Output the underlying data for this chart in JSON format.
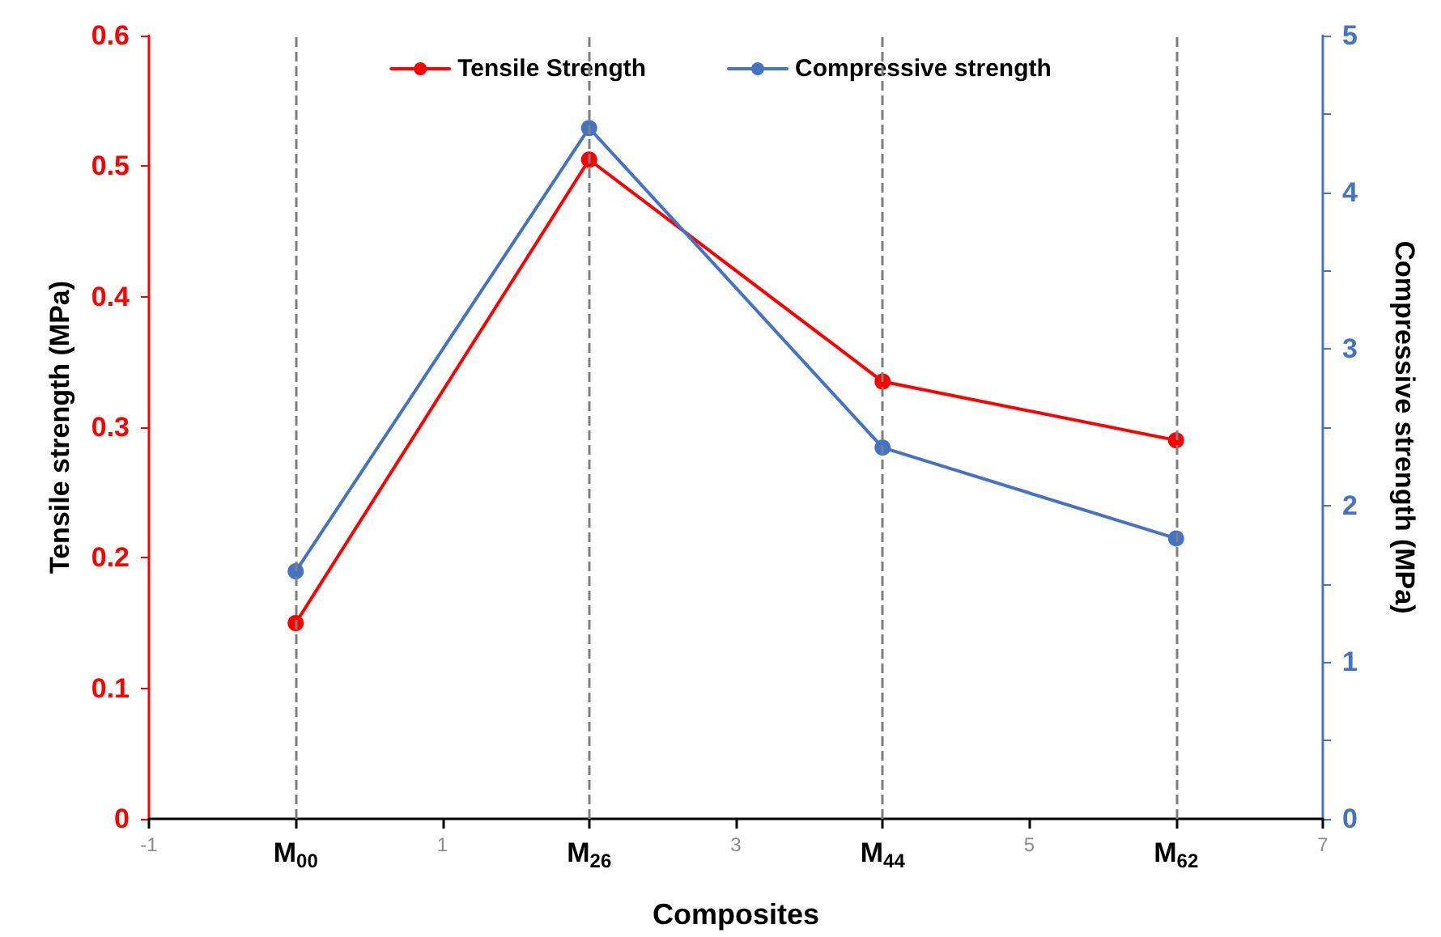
{
  "chart_data": {
    "type": "line",
    "xlabel": "Composites",
    "ylabel": "Tensile strength (MPa)",
    "y2label": "Compressive strength (MPa)",
    "categories": [
      "-1",
      "M$_{00}$",
      "1",
      "M$_{26}$",
      "3",
      "M$_{44}$",
      "5",
      "M$_{62}$",
      "7"
    ],
    "ylim": [
      0,
      0.6
    ],
    "yticks": [
      0,
      0.1,
      0.2,
      0.3,
      0.4,
      0.5,
      0.6
    ],
    "y2lim": [
      0,
      5
    ],
    "y2ticks": [
      0,
      {
        "value": 0.5,
        "label": null
      },
      1,
      {
        "value": 1.5,
        "label": null
      },
      2,
      {
        "value": 2.5,
        "label": null
      },
      3,
      {
        "value": 3.5,
        "label": null
      },
      4,
      {
        "value": 4.5,
        "label": null
      },
      5
    ],
    "series": [
      {
        "name": "Tensile Strength",
        "color": "#ff0000",
        "x": [
          "M$_{00}$",
          "M$_{26}$",
          "M$_{44}$",
          "M$_{62}$"
        ],
        "values": [
          0.15,
          0.505,
          0.335,
          0.29
        ]
      },
      {
        "name": "Compressive strength",
        "color": "#4472c4",
        "axis": "y2",
        "x": [
          "M$_{00}$",
          "M$_{26}$",
          "M$_{44}$",
          "M$_{62}$"
        ],
        "values": [
          1.58,
          4.41,
          2.37,
          1.79
        ]
      }
    ],
    "ref_lines": [
      {
        "axis": "x",
        "value": "M$_{00}$",
        "color": "#7f7f7f",
        "line_style": "dashed"
      },
      {
        "axis": "x",
        "value": "M$_{26}$",
        "color": "#7f7f7f",
        "line_style": "dashed"
      },
      {
        "axis": "x",
        "value": "M$_{44}$",
        "color": "#7f7f7f",
        "line_style": "dashed"
      },
      {
        "axis": "x",
        "value": "M$_{62}$",
        "color": "#7f7f7f",
        "line_style": "dashed"
      }
    ],
    "grid": false,
    "legend": "top",
    "marker": "circle",
    "line_style": "solid"
  }
}
